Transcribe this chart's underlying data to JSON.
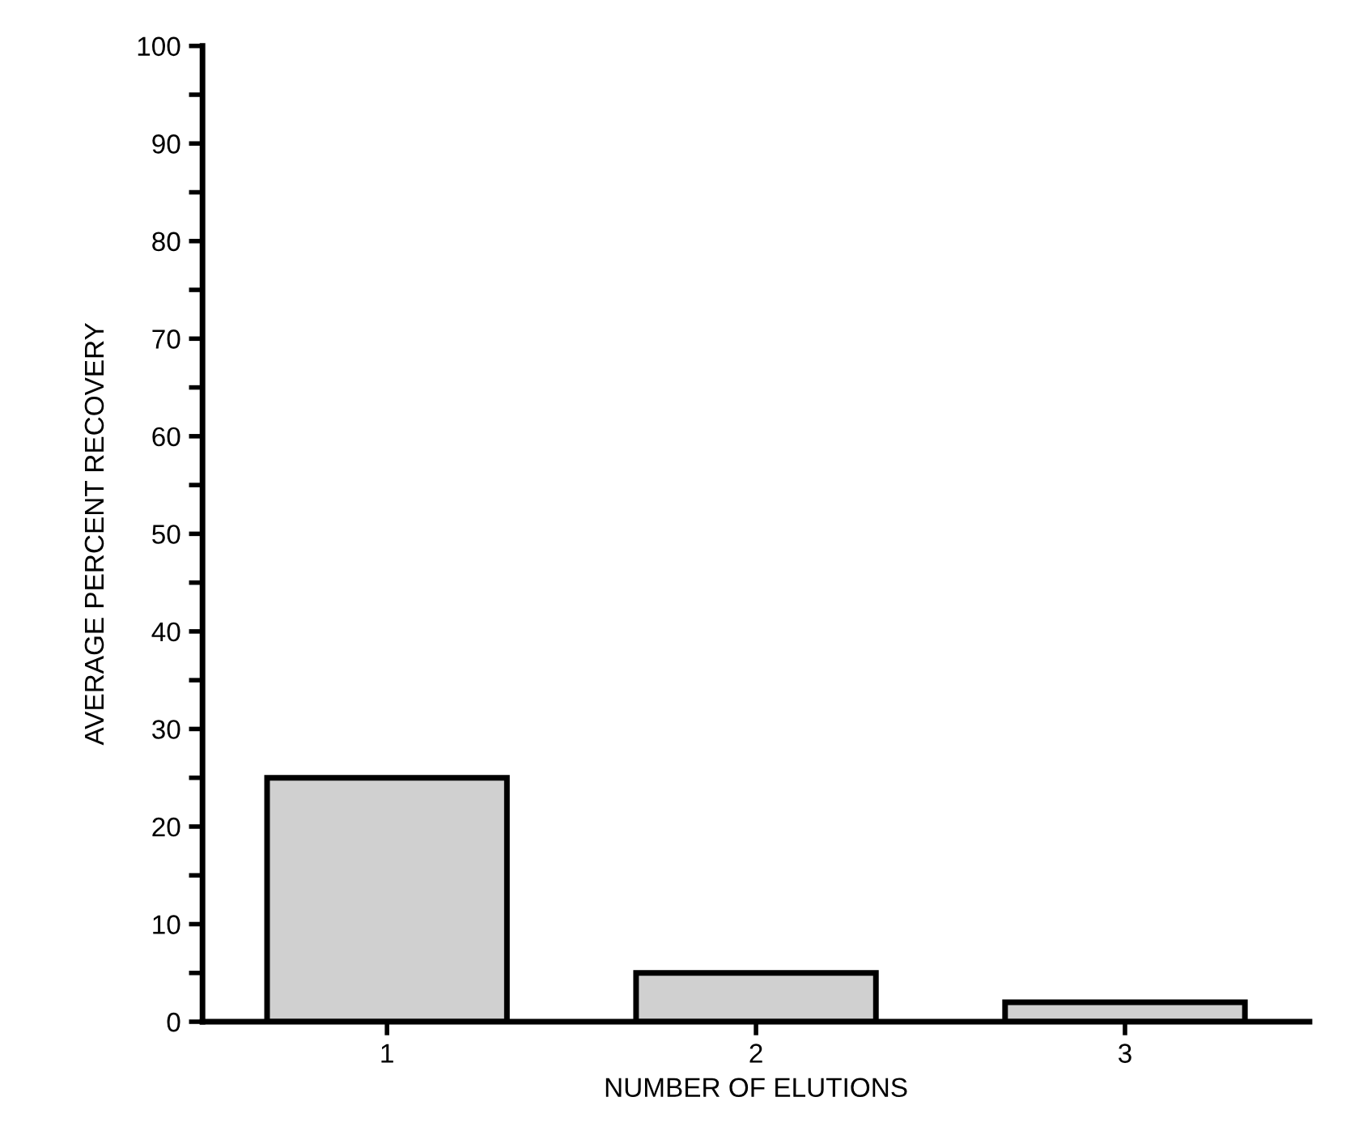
{
  "chart_data": {
    "type": "bar",
    "xlabel": "NUMBER OF ELUTIONS",
    "ylabel": "AVERAGE PERCENT RECOVERY",
    "categories": [
      "1",
      "2",
      "3"
    ],
    "values": [
      25,
      5,
      2
    ],
    "color": "#d0d0d0",
    "ylim": [
      0,
      100
    ],
    "yticks": [
      0,
      {
        "value": 5,
        "label": null
      },
      10,
      {
        "value": 15,
        "label": null
      },
      20,
      {
        "value": 25,
        "label": null
      },
      30,
      {
        "value": 35,
        "label": null
      },
      40,
      {
        "value": 45,
        "label": null
      },
      50,
      {
        "value": 55,
        "label": null
      },
      60,
      {
        "value": 65,
        "label": null
      },
      70,
      {
        "value": 75,
        "label": null
      },
      80,
      {
        "value": 85,
        "label": null
      },
      90,
      {
        "value": 95,
        "label": null
      },
      100
    ],
    "grid": false
  }
}
